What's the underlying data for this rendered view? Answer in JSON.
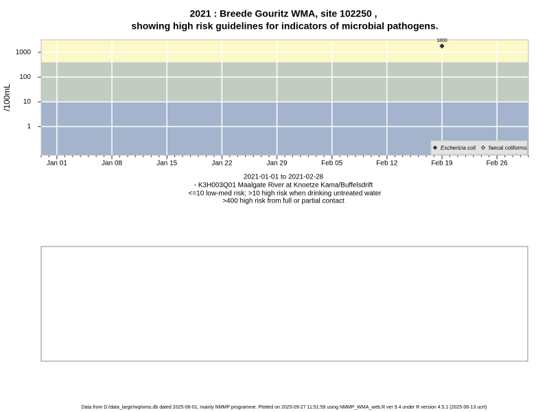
{
  "chart_data": {
    "type": "scatter",
    "title": [
      "2021 : Breede Gouritz WMA, site 102250 ,",
      "showing high risk guidelines for indicators of microbial pathogens."
    ],
    "y_label": "/100mL",
    "subtitle": [
      "2021-01-01 to 2021-02-28",
      "- K3H003Q01 Maalgate River at Knoetze Kama/Buffelsdrift",
      "<=10 low-med risk; >10 high risk when drinking untreated water",
      ">400 high risk from full or partial contact"
    ],
    "footer": "Data from D:/data_large/wq/wms.db dated 2025-08-01, mainly NMMP programme. Plotted on 2025-09-27 11:51:59 using NMMP_WMA_web.R ver 9.4 under R version 4.5.1 (2025-06-13 ucrt)",
    "x": [
      "2021-02-19"
    ],
    "series": [
      {
        "name": "Eschericia coli",
        "color": "#333333",
        "marker": "filled-diamond",
        "values": [
          1800
        ]
      },
      {
        "name": "faecal coliforms",
        "color": "#333333",
        "marker": "open-diamond",
        "values": [
          null
        ]
      }
    ],
    "ylog": true,
    "ylim": [
      0.07,
      3200
    ],
    "yticks": [
      1,
      10,
      100,
      1000
    ],
    "xlim": [
      "2020-12-30",
      "2021-03-02"
    ],
    "xticks": [
      {
        "value": "2021-01-01",
        "label": "Jan 01"
      },
      {
        "value": "2021-01-08",
        "label": "Jan 08"
      },
      {
        "value": "2021-01-15",
        "label": "Jan 15"
      },
      {
        "value": "2021-01-22",
        "label": "Jan 22"
      },
      {
        "value": "2021-01-29",
        "label": "Jan 29"
      },
      {
        "value": "2021-02-05",
        "label": "Feb 05"
      },
      {
        "value": "2021-02-12",
        "label": "Feb 12"
      },
      {
        "value": "2021-02-19",
        "label": "Feb 19"
      },
      {
        "value": "2021-02-26",
        "label": "Feb 26"
      }
    ],
    "thresholds": [
      10,
      400
    ],
    "band_colors": [
      "#a3b4cc",
      "#c3ccc0",
      "#fdf8c8"
    ],
    "grid": true,
    "legend_position": "bottom-right"
  }
}
